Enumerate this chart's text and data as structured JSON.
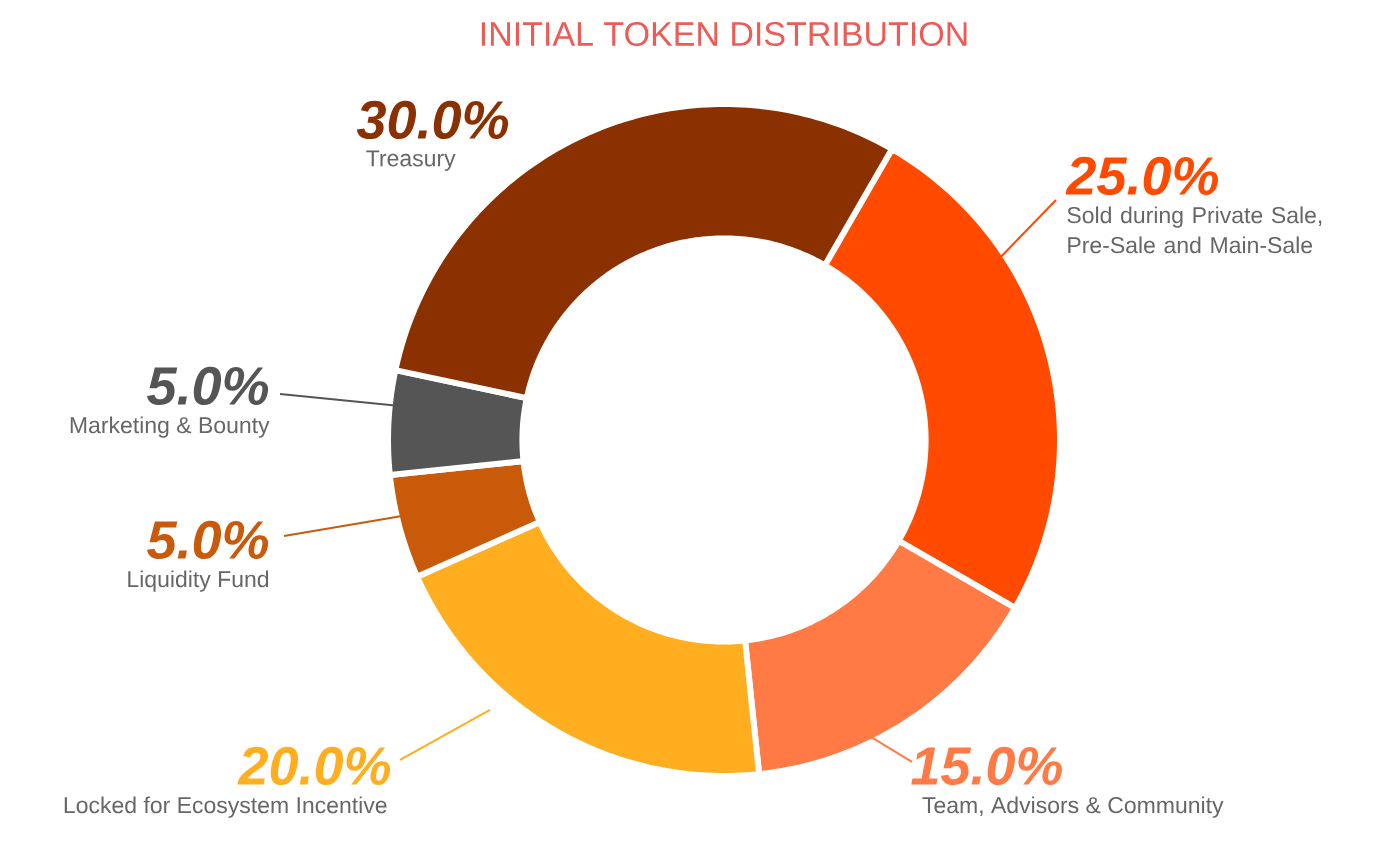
{
  "chart_data": {
    "type": "donut",
    "title": "INITIAL TOKEN DISTRIBUTION",
    "categories": [
      "Sold during Private Sale, Pre-Sale and Main-Sale",
      "Team, Advisors & Community",
      "Locked for Ecosystem Incentive",
      "Liquidity Fund",
      "Marketing & Bounty",
      "Treasury"
    ],
    "values": [
      25,
      15,
      20,
      5,
      5,
      30
    ],
    "value_labels": [
      "25.0%",
      "15.0%",
      "20.0%",
      "5.0%",
      "5.0%",
      "30.0%"
    ],
    "colors": [
      "#ff4a00",
      "#ff7a45",
      "#ffae1f",
      "#c85a0a",
      "#555555",
      "#8b3000"
    ]
  }
}
